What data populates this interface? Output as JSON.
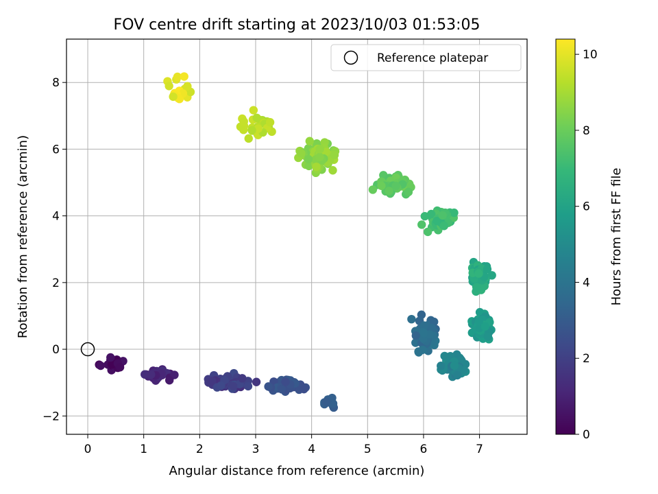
{
  "chart_data": {
    "type": "scatter",
    "title": "FOV centre drift starting at 2023/10/03 01:53:05",
    "xlabel": "Angular distance from reference (arcmin)",
    "ylabel": "Rotation from reference (arcmin)",
    "xlim": [
      -0.38,
      7.85
    ],
    "ylim": [
      -2.55,
      9.3
    ],
    "xticks": [
      "0",
      "1",
      "2",
      "3",
      "4",
      "5",
      "6",
      "7"
    ],
    "yticks": [
      "−2",
      "0",
      "2",
      "4",
      "6",
      "8"
    ],
    "grid": true,
    "legend": {
      "position": "top-right",
      "label": "Reference platepar"
    },
    "reference_point": {
      "x": 0,
      "y": 0
    },
    "colorbar": {
      "label": "Hours from first FF file",
      "range": [
        0,
        10.4
      ],
      "ticks": [
        "0",
        "2",
        "4",
        "6",
        "8",
        "10"
      ],
      "colormap": "viridis"
    },
    "point_size_note": "",
    "segments": [
      {
        "hours": [
          0.0,
          0.6
        ],
        "cx": 0.45,
        "cy": -0.45,
        "sx": 0.25,
        "sy": 0.18,
        "n": 25
      },
      {
        "hours": [
          0.6,
          1.4
        ],
        "cx": 1.25,
        "cy": -0.75,
        "sx": 0.28,
        "sy": 0.18,
        "n": 35
      },
      {
        "hours": [
          1.4,
          2.4
        ],
        "cx": 2.55,
        "cy": -1.0,
        "sx": 0.35,
        "sy": 0.22,
        "n": 70
      },
      {
        "hours": [
          2.4,
          3.0
        ],
        "cx": 3.55,
        "cy": -1.1,
        "sx": 0.35,
        "sy": 0.25,
        "n": 40
      },
      {
        "hours": [
          3.0,
          3.3
        ],
        "cx": 4.3,
        "cy": -1.6,
        "sx": 0.15,
        "sy": 0.2,
        "n": 10
      },
      {
        "hours": [
          3.3,
          4.2
        ],
        "cx": 6.0,
        "cy": 0.4,
        "sx": 0.3,
        "sy": 0.6,
        "n": 55
      },
      {
        "hours": [
          4.2,
          5.2
        ],
        "cx": 6.55,
        "cy": -0.5,
        "sx": 0.22,
        "sy": 0.35,
        "n": 60
      },
      {
        "hours": [
          5.2,
          6.0
        ],
        "cx": 7.05,
        "cy": 0.7,
        "sx": 0.18,
        "sy": 0.4,
        "n": 60
      },
      {
        "hours": [
          6.0,
          6.8
        ],
        "cx": 7.0,
        "cy": 2.2,
        "sx": 0.2,
        "sy": 0.45,
        "n": 60
      },
      {
        "hours": [
          6.8,
          7.5
        ],
        "cx": 6.3,
        "cy": 3.9,
        "sx": 0.3,
        "sy": 0.4,
        "n": 60
      },
      {
        "hours": [
          7.5,
          8.2
        ],
        "cx": 5.5,
        "cy": 5.0,
        "sx": 0.3,
        "sy": 0.35,
        "n": 55
      },
      {
        "hours": [
          8.2,
          9.0
        ],
        "cx": 4.1,
        "cy": 5.8,
        "sx": 0.35,
        "sy": 0.5,
        "n": 80
      },
      {
        "hours": [
          9.0,
          9.6
        ],
        "cx": 3.0,
        "cy": 6.7,
        "sx": 0.45,
        "sy": 0.4,
        "n": 30
      },
      {
        "hours": [
          9.6,
          10.4
        ],
        "cx": 1.65,
        "cy": 7.9,
        "sx": 0.25,
        "sy": 0.5,
        "n": 18
      }
    ]
  }
}
